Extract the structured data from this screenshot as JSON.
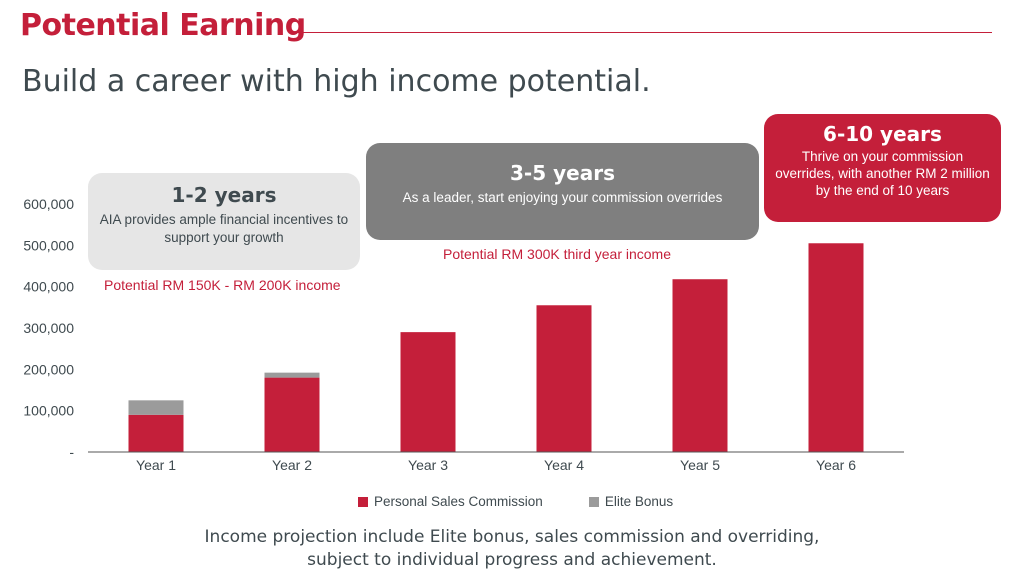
{
  "header": {
    "title": "Potential Earning",
    "subtitle": "Build a career with high income potential."
  },
  "callouts": [
    {
      "title": "1-2 years",
      "text": "AIA provides ample financial incentives to support your growth"
    },
    {
      "title": "3-5 years",
      "text": "As a leader, start enjoying your commission overrides"
    },
    {
      "title": "6-10 years",
      "text": "Thrive on your commission overrides, with another RM 2 million by the end of 10 years"
    }
  ],
  "potentials": [
    "Potential RM 150K - RM 200K income",
    "Potential RM 300K third year income"
  ],
  "chart_data": {
    "type": "bar",
    "stacked": true,
    "categories": [
      "Year 1",
      "Year 2",
      "Year 3",
      "Year 4",
      "Year 5",
      "Year 6"
    ],
    "series": [
      {
        "name": "Personal Sales Commission",
        "values": [
          90000,
          180000,
          290000,
          355000,
          418000,
          505000
        ],
        "color": "#c41f3a"
      },
      {
        "name": "Elite Bonus",
        "values": [
          35000,
          12000,
          0,
          0,
          0,
          0
        ],
        "color": "#9b9b9b"
      }
    ],
    "y_ticks": [
      "600,000",
      "500,000",
      "400,000",
      "300,000",
      "200,000",
      "100,000",
      "-"
    ],
    "ylim": [
      0,
      600000
    ],
    "grid": false,
    "legend_position": "bottom"
  },
  "footnote": {
    "line1": "Income projection include Elite bonus, sales commission and overriding,",
    "line2": "subject to individual progress and achievement."
  },
  "colors": {
    "brand_red": "#c41f3a",
    "bonus_grey": "#9b9b9b",
    "text_dark": "#3f4a4f"
  }
}
